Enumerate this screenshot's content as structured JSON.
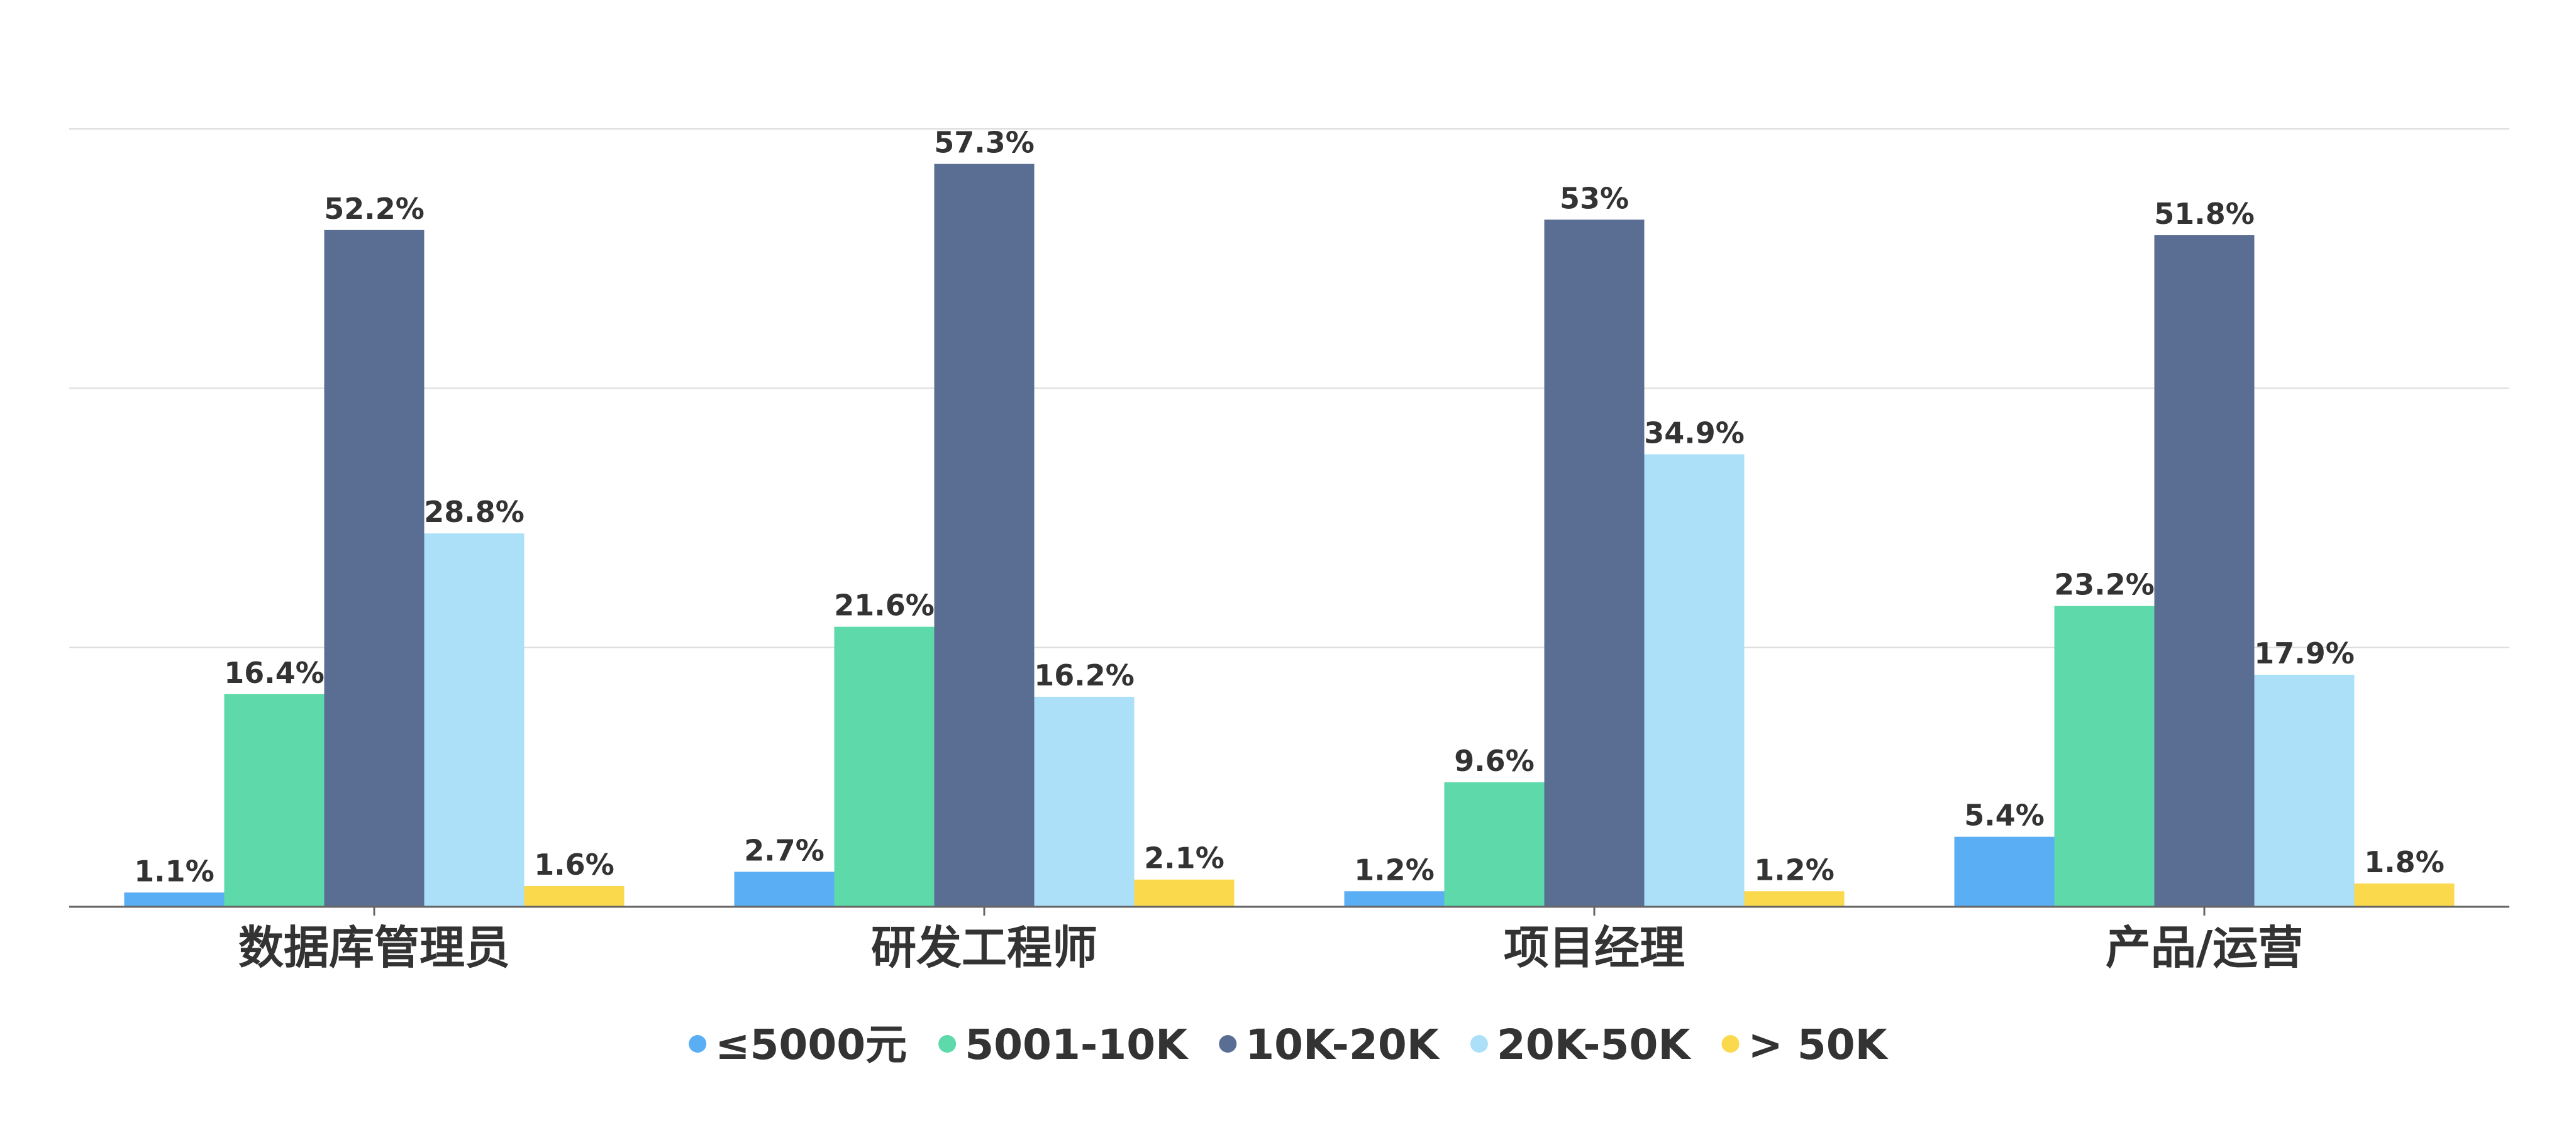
{
  "chart_data": {
    "type": "bar",
    "title": "",
    "xlabel": "",
    "ylabel": "",
    "ylim": [
      0,
      60
    ],
    "grid": true,
    "legend_position": "bottom",
    "categories": [
      "数据库管理员",
      "研发工程师",
      "项目经理",
      "产品/运营"
    ],
    "value_format": "percent",
    "series": [
      {
        "name": "≤5000元",
        "color": "#5aaef4",
        "values": [
          1.1,
          2.7,
          1.2,
          5.4
        ]
      },
      {
        "name": "5001-10K",
        "color": "#5ed9aa",
        "values": [
          16.4,
          21.6,
          9.6,
          23.2
        ]
      },
      {
        "name": "10K-20K",
        "color": "#5a6e94",
        "values": [
          52.2,
          57.3,
          53,
          51.8
        ]
      },
      {
        "name": "20K-50K",
        "color": "#ace0f9",
        "values": [
          28.8,
          16.2,
          34.9,
          17.9
        ]
      },
      {
        "name": "> 50K",
        "color": "#fad94d",
        "values": [
          1.6,
          2.1,
          1.2,
          1.8
        ]
      }
    ]
  }
}
